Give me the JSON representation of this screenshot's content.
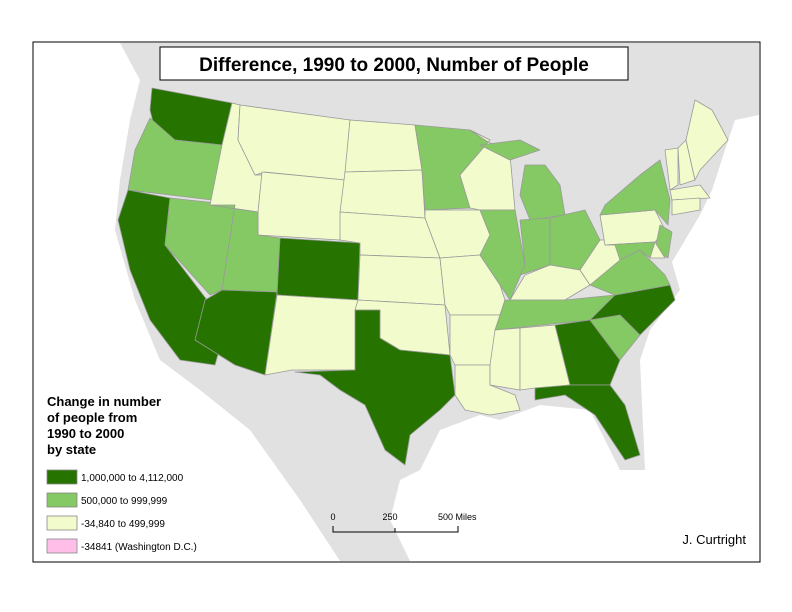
{
  "title": "Difference, 1990 to 2000, Number of People",
  "legend": {
    "title": [
      "Change in number",
      "of people from",
      "1990 to 2000",
      "by state"
    ],
    "items": [
      {
        "label": "1,000,000 to 4,112,000",
        "color": "#267300"
      },
      {
        "label": "500,000 to 999,999",
        "color": "#85c964"
      },
      {
        "label": "-34,840 to 499,999",
        "color": "#f2fbcb"
      },
      {
        "label": "-34841 (Washington D.C.)",
        "color": "#ffbee8"
      }
    ]
  },
  "scale_bar": {
    "labels": [
      "0",
      "250",
      "500 Miles"
    ]
  },
  "author": "J. Curtright"
}
